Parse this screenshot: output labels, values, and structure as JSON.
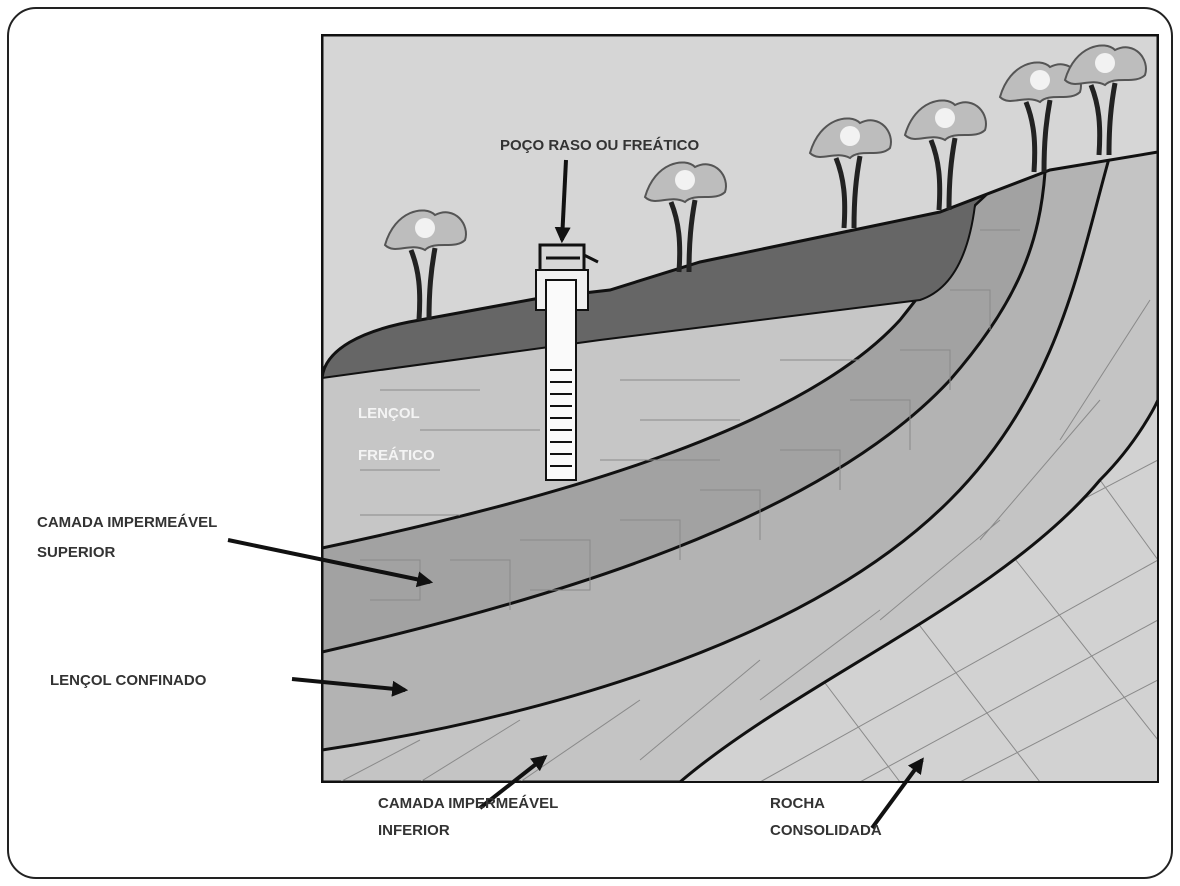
{
  "labels": [
    {
      "lines": [
        "POÇO RASO OU FREÁTICO"
      ]
    },
    {
      "lines": [
        "LENÇOL",
        "FREÁTICO"
      ]
    },
    {
      "lines": [
        "CAMADA IMPERMEÁVEL",
        "SUPERIOR"
      ]
    },
    {
      "lines": [
        "LENÇOL CONFINADO"
      ]
    },
    {
      "lines": [
        "CAMADA IMPERMEÁVEL",
        "INFERIOR"
      ]
    },
    {
      "lines": [
        "ROCHA",
        "CONSOLIDADA"
      ]
    }
  ]
}
